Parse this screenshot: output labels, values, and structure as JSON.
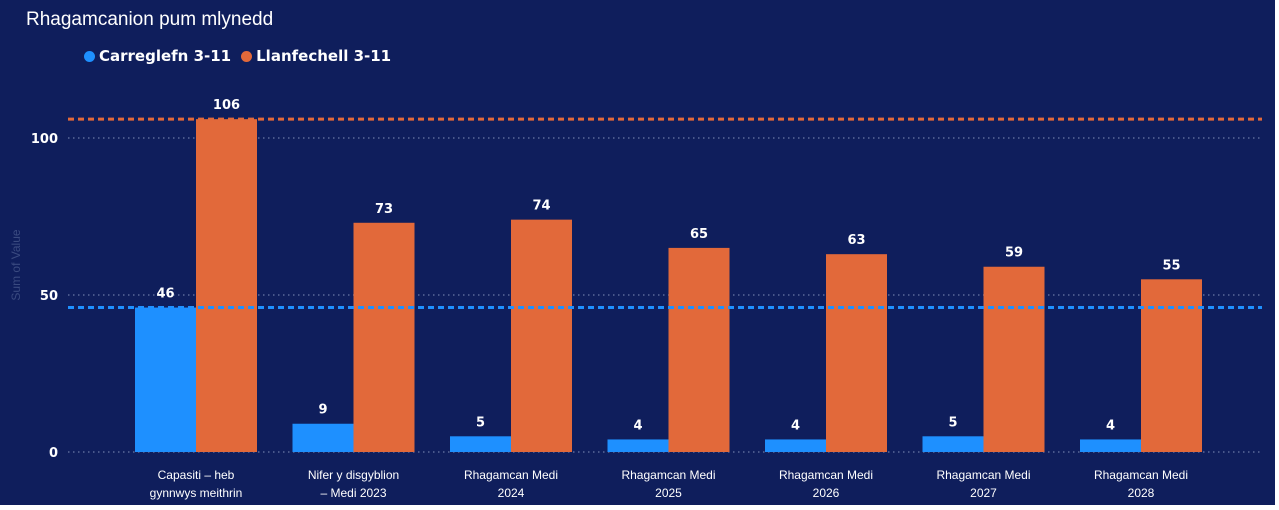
{
  "colors": {
    "background": "#0f1e5c",
    "series_a": "#1e90ff",
    "series_b": "#e2693a",
    "grid": "#8090b8",
    "text": "#ffffff"
  },
  "chart_data": {
    "type": "bar",
    "title": "Rhagamcanion pum mlynedd",
    "ylabel": "Sum of Value",
    "xlabel": "",
    "ylim": [
      0,
      117
    ],
    "yticks": [
      0,
      50,
      100
    ],
    "grid": true,
    "legend_position": "top-left",
    "categories": [
      [
        "Capasiti – heb",
        "gynnwys meithrin"
      ],
      [
        "Nifer y disgyblion",
        "– Medi 2023"
      ],
      [
        "Rhagamcan Medi",
        "2024"
      ],
      [
        "Rhagamcan Medi",
        "2025"
      ],
      [
        "Rhagamcan Medi",
        "2026"
      ],
      [
        "Rhagamcan Medi",
        "2027"
      ],
      [
        "Rhagamcan Medi",
        "2028"
      ]
    ],
    "series": [
      {
        "name": "Carreglefn 3-11",
        "color": "#1e90ff",
        "values": [
          46,
          9,
          5,
          4,
          4,
          5,
          4
        ],
        "reference_line": 46
      },
      {
        "name": "Llanfechell 3-11",
        "color": "#e2693a",
        "values": [
          106,
          73,
          74,
          65,
          63,
          59,
          55
        ],
        "reference_line": 106
      }
    ]
  }
}
